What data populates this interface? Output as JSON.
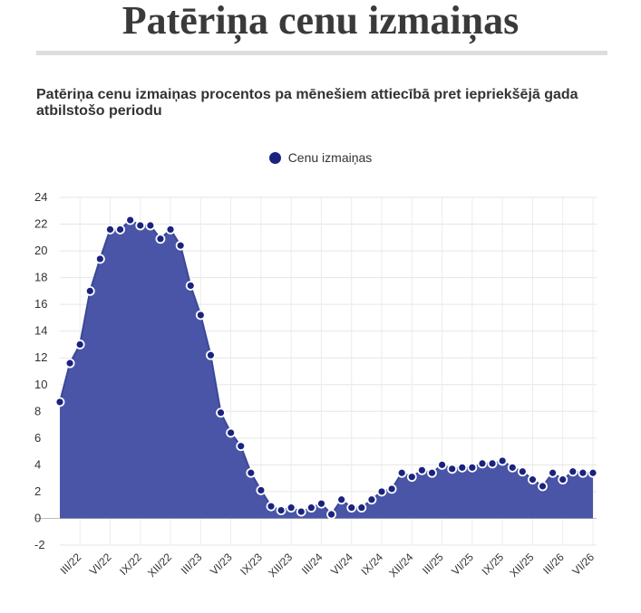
{
  "header": {
    "title": "Patēriņa cenu izmaiņas",
    "subtitle": "Patēriņa cenu izmaiņas procentos pa mēnešiem attiecībā pret iepriekšējā gada atbilstošo periodu"
  },
  "chart_data": {
    "type": "area",
    "title": "Patēriņa cenu izmaiņas procentos pa mēnešiem attiecībā pret iepriekšējā gada atbilstošo periodu",
    "legend": "top-center",
    "grid": true,
    "colors": {
      "fill": "#4a55a8",
      "line": "#3b4799",
      "marker": "#1a237e",
      "marker_stroke": "#ffffff"
    },
    "x": [
      "I/22",
      "II/22",
      "III/22",
      "IV/22",
      "V/22",
      "VI/22",
      "VII/22",
      "VIII/22",
      "IX/22",
      "X/22",
      "XI/22",
      "XII/22",
      "I/23",
      "II/23",
      "III/23",
      "IV/23",
      "V/23",
      "VI/23",
      "VII/23",
      "VIII/23",
      "IX/23",
      "X/23",
      "XI/23",
      "XII/23",
      "I/24",
      "II/24",
      "III/24",
      "IV/24",
      "V/24",
      "VI/24",
      "VII/24",
      "VIII/24",
      "IX/24",
      "X/24",
      "XI/24",
      "XII/24",
      "I/25",
      "II/25",
      "III/25",
      "IV/25",
      "V/25",
      "VI/25",
      "VII/25",
      "VIII/25",
      "IX/25",
      "X/25",
      "XI/25",
      "XII/25",
      "I/26",
      "II/26",
      "III/26",
      "IV/26",
      "V/26",
      "VI/26"
    ],
    "x_tick_labels": [
      "III/22",
      "VI/22",
      "IX/22",
      "XII/22",
      "III/23",
      "VI/23",
      "IX/23",
      "XII/23",
      "III/24",
      "VI/24",
      "IX/24",
      "XII/24",
      "III/25",
      "VI/25",
      "IX/25",
      "XII/25",
      "III/26",
      "VI/26"
    ],
    "series": [
      {
        "name": "Cenu izmaiņas",
        "values": [
          8.7,
          11.6,
          13.0,
          17.0,
          19.4,
          21.6,
          21.6,
          22.3,
          21.9,
          21.9,
          20.9,
          21.6,
          20.4,
          17.4,
          15.2,
          12.2,
          7.9,
          6.4,
          5.4,
          3.4,
          2.1,
          0.9,
          0.6,
          0.8,
          0.5,
          0.8,
          1.1,
          0.3,
          1.4,
          0.8,
          0.8,
          1.4,
          2.0,
          2.2,
          3.4,
          3.1,
          3.6,
          3.4,
          4.0,
          3.7,
          3.8,
          3.8,
          4.1,
          4.1,
          4.3,
          3.8,
          3.5,
          2.9,
          2.4,
          3.4,
          2.9,
          3.5,
          3.4,
          3.4
        ]
      }
    ],
    "xlabel": "",
    "ylabel": "",
    "ylim": [
      -2,
      24
    ],
    "yticks": [
      -2,
      0,
      2,
      4,
      6,
      8,
      10,
      12,
      14,
      16,
      18,
      20,
      22,
      24
    ]
  }
}
